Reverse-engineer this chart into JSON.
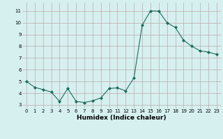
{
  "x": [
    0,
    1,
    2,
    3,
    4,
    5,
    6,
    7,
    8,
    9,
    10,
    11,
    12,
    13,
    14,
    15,
    16,
    17,
    18,
    19,
    20,
    21,
    22,
    23
  ],
  "y": [
    5.0,
    4.5,
    4.3,
    4.1,
    3.3,
    4.4,
    3.3,
    3.2,
    3.35,
    3.6,
    4.4,
    4.45,
    4.2,
    5.3,
    9.8,
    11.0,
    11.0,
    10.0,
    9.6,
    8.5,
    8.0,
    7.6,
    7.5,
    7.3
  ],
  "line_color": "#1a6b5a",
  "marker": "D",
  "marker_size": 2.0,
  "bg_color": "#d6f0f0",
  "grid_color": "#c0a8a8",
  "xlabel": "Humidex (Indice chaleur)",
  "ylim": [
    2.7,
    11.7
  ],
  "xlim": [
    -0.5,
    23.5
  ],
  "yticks": [
    3,
    4,
    5,
    6,
    7,
    8,
    9,
    10,
    11
  ],
  "xticks": [
    0,
    1,
    2,
    3,
    4,
    5,
    6,
    7,
    8,
    9,
    10,
    11,
    12,
    13,
    14,
    15,
    16,
    17,
    18,
    19,
    20,
    21,
    22,
    23
  ],
  "tick_fontsize": 5.0,
  "xlabel_fontsize": 6.5
}
